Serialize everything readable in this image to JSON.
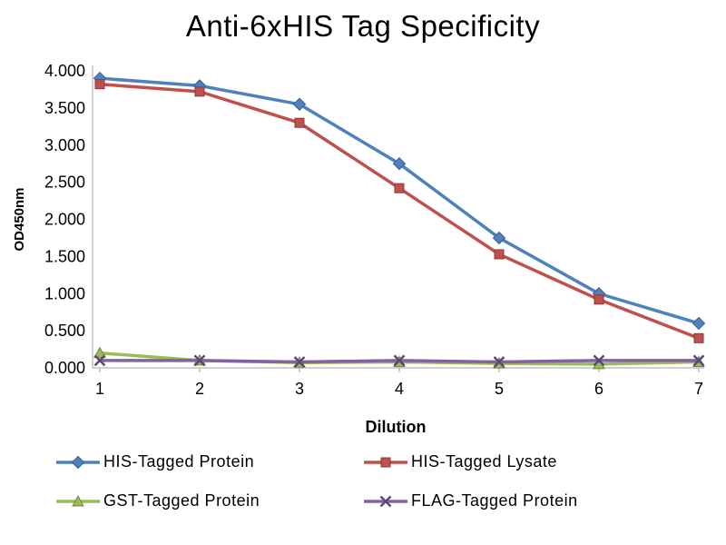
{
  "chart_data": {
    "type": "line",
    "title": "Anti-6xHIS Tag Specificity",
    "xlabel": "Dilution",
    "ylabel": "OD450nm",
    "x": [
      1,
      2,
      3,
      4,
      5,
      6,
      7
    ],
    "ylim": [
      0,
      4
    ],
    "ytick_labels": [
      "0.000",
      "0.500",
      "1.000",
      "1.500",
      "2.000",
      "2.500",
      "3.000",
      "3.500",
      "4.000"
    ],
    "grid": false,
    "legend_position": "bottom",
    "axis_color": "#bfbfbf",
    "text_color": "#000000",
    "series": [
      {
        "name": "HIS-Tagged Protein",
        "color": "#4F81BD",
        "marker": "diamond",
        "values": [
          3.9,
          3.8,
          3.55,
          2.75,
          1.75,
          1.0,
          0.6
        ]
      },
      {
        "name": "HIS-Tagged Lysate",
        "color": "#C0504D",
        "marker": "square",
        "values": [
          3.82,
          3.72,
          3.3,
          2.42,
          1.53,
          0.92,
          0.4
        ]
      },
      {
        "name": "GST-Tagged Protein",
        "color": "#9BBB59",
        "marker": "triangle",
        "values": [
          0.2,
          0.1,
          0.07,
          0.08,
          0.06,
          0.05,
          0.08
        ]
      },
      {
        "name": "FLAG-Tagged Protein",
        "color": "#8064A2",
        "marker": "x",
        "values": [
          0.1,
          0.1,
          0.08,
          0.1,
          0.08,
          0.1,
          0.1
        ]
      }
    ]
  }
}
